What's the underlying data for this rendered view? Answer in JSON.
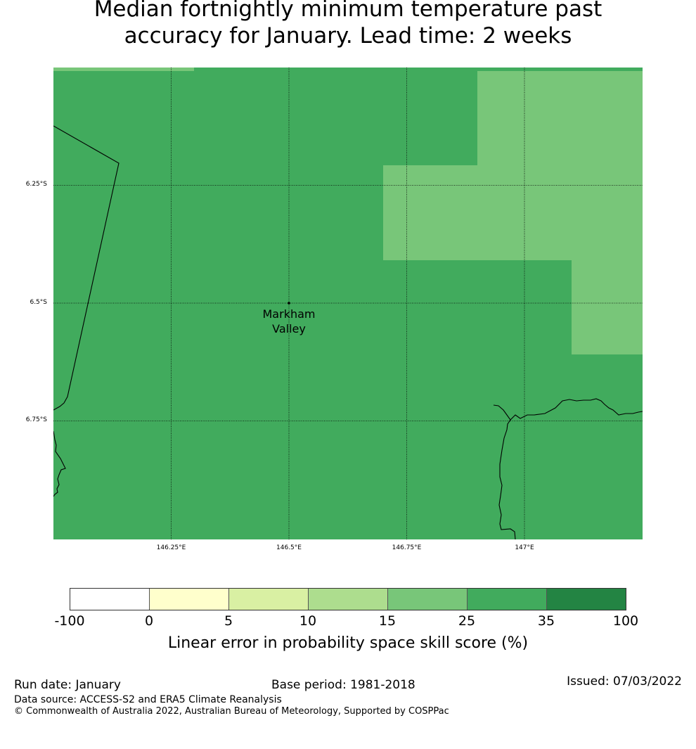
{
  "title_line1": "Median fortnightly minimum temperature past",
  "title_line2": "accuracy for January. Lead time: 2 weeks",
  "map": {
    "colors": {
      "base": "#41ab5d",
      "patch": "#78c679",
      "coast": "#000000",
      "grid": "#000000"
    },
    "lat_ticks": [
      "6.25°S",
      "6.5°S",
      "6.75°S"
    ],
    "lon_ticks": [
      "146.25°E",
      "146.5°E",
      "146.75°E",
      "147°E"
    ],
    "place": {
      "name_line1": "Markham",
      "name_line2": "Valley"
    }
  },
  "legend": {
    "ticks": [
      "-100",
      "0",
      "5",
      "10",
      "15",
      "25",
      "35",
      "100"
    ],
    "colors": [
      "#ffffff",
      "#ffffcc",
      "#d9f0a3",
      "#addd8e",
      "#78c679",
      "#41ab5d",
      "#238443"
    ],
    "label": "Linear error in probability space skill score (%)"
  },
  "footer": {
    "run_date": "Run date: January",
    "base_period": "Base period: 1981-2018",
    "issued": "Issued: 07/03/2022",
    "data_source": "Data source: ACCESS-S2 and ERA5 Climate Reanalysis",
    "copyright": "© Commonwealth of Australia 2022, Australian Bureau of Meteorology, Supported by COSPPac"
  }
}
